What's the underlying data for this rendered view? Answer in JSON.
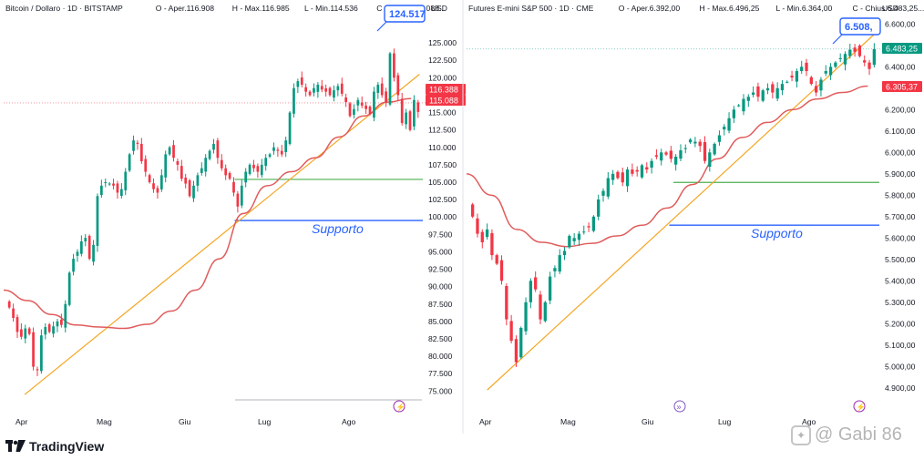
{
  "brand": {
    "name": "TradingView"
  },
  "watermark": {
    "text": "@ Gabi 86"
  },
  "chart_data": [
    {
      "type": "candlestick",
      "header": {
        "symbol": "Bitcoin / Dollaro · 1D · BITSTAMP",
        "open": "O - Aper.116.908",
        "high": "H - Max.116.985",
        "low": "L - Min.114.536",
        "close": "C - Chius.115.088..."
      },
      "currency": "USD",
      "y_ticks": [
        "125.000",
        "122.500",
        "120.000",
        "117.500",
        "115.000",
        "112.500",
        "110.000",
        "107.500",
        "105.000",
        "102.500",
        "100.000",
        "97.500",
        "95.000",
        "92.500",
        "90.000",
        "87.500",
        "85.000",
        "82.500",
        "80.000",
        "77.500",
        "75.000"
      ],
      "y_range": [
        74000,
        127500
      ],
      "x_labels": [
        "Apr",
        "Mag",
        "Giu",
        "Lug",
        "Ago"
      ],
      "price_tags": [
        {
          "value": 124517,
          "label": "124.517",
          "style": "callout",
          "color": "#2962ff"
        },
        {
          "value": 116388,
          "label": "116.388",
          "style": "filled",
          "color": "#f23645"
        },
        {
          "value": 115088,
          "label": "115.088",
          "style": "filled",
          "color": "#f23645"
        }
      ],
      "support_label": "Supporto",
      "support_level": 99500,
      "green_level": 105400,
      "trendline": {
        "from": {
          "t": 0.05,
          "y": 74500
        },
        "to": {
          "t": 0.99,
          "y": 120500
        }
      },
      "ma_values": [
        89500,
        88000,
        86000,
        84500,
        84200,
        84000,
        84600,
        86500,
        89500,
        94000,
        100500,
        104500,
        106500,
        108500,
        111500,
        114500,
        116500,
        117000
      ],
      "closes": [
        87000,
        85500,
        83500,
        82800,
        84000,
        83200,
        78500,
        78000,
        83000,
        84200,
        83500,
        84300,
        85000,
        84500,
        87500,
        92000,
        94000,
        95000,
        96500,
        97000,
        94000,
        96000,
        103000,
        104500,
        105000,
        104800,
        104500,
        103500,
        104000,
        106500,
        109000,
        111000,
        110500,
        108000,
        106500,
        105000,
        104000,
        103500,
        106000,
        109000,
        110000,
        108500,
        107500,
        105500,
        104800,
        103000,
        104500,
        106000,
        107000,
        108500,
        109500,
        110500,
        108500,
        107000,
        106000,
        105500,
        103500,
        101500,
        104500,
        106500,
        107500,
        107000,
        106500,
        107500,
        108500,
        109000,
        110000,
        109500,
        109000,
        111000,
        115000,
        118500,
        119500,
        119000,
        118000,
        117500,
        118500,
        119000,
        118300,
        118000,
        117500,
        118200,
        118800,
        117700,
        116500,
        114500,
        115500,
        116800,
        116000,
        115500,
        114800,
        118000,
        119000,
        117500,
        116500,
        123500,
        120000,
        117500,
        113500,
        115000,
        112500,
        116800,
        115088
      ]
    },
    {
      "type": "candlestick",
      "header": {
        "symbol": "Futures E-mini S&P 500 · 1D · CME",
        "open": "O - Aper.6.392,00",
        "high": "H - Max.6.496,25",
        "low": "L - Min.6.364,00",
        "close": "C - Chius.6.483,25..."
      },
      "currency": "USD",
      "y_ticks": [
        "6.600,00",
        "6.500,00",
        "6.400,00",
        "6.300,00",
        "6.200,00",
        "6.100,00",
        "6.000,00",
        "5.900,00",
        "5.800,00",
        "5.700,00",
        "5.600,00",
        "5.500,00",
        "5.400,00",
        "5.300,00",
        "5.200,00",
        "5.100,00",
        "5.000,00",
        "4.900,00"
      ],
      "y_range": [
        4865,
        6610
      ],
      "x_labels": [
        "Apr",
        "Mag",
        "Giu",
        "Lug",
        "Ago"
      ],
      "price_tags": [
        {
          "value": 6508,
          "label": "6.508,",
          "style": "callout",
          "color": "#2962ff"
        },
        {
          "value": 6483.25,
          "label": "6.483,25",
          "style": "filled",
          "color": "#089981"
        },
        {
          "value": 6305.37,
          "label": "6.305,37",
          "style": "filled",
          "color": "#f23645"
        }
      ],
      "support_label": "Supporto",
      "support_level": 5660,
      "green_level": 5860,
      "trendline": {
        "from": {
          "t": 0.05,
          "y": 4890
        },
        "to": {
          "t": 0.99,
          "y": 6560
        }
      },
      "ma_values": [
        5900,
        5800,
        5640,
        5580,
        5560,
        5575,
        5610,
        5660,
        5740,
        5850,
        5970,
        6070,
        6140,
        6200,
        6250,
        6280,
        6310
      ],
      "closes": [
        5700,
        5620,
        5580,
        5640,
        5520,
        5480,
        5400,
        5220,
        5120,
        5020,
        5180,
        5300,
        5400,
        5360,
        5220,
        5300,
        5420,
        5460,
        5520,
        5540,
        5610,
        5600,
        5620,
        5630,
        5650,
        5700,
        5780,
        5820,
        5880,
        5900,
        5880,
        5860,
        5920,
        5900,
        5910,
        5940,
        5920,
        5960,
        5980,
        6000,
        5990,
        5970,
        5980,
        6010,
        6020,
        6060,
        6050,
        6030,
        5960,
        6000,
        6040,
        6080,
        6120,
        6160,
        6200,
        6220,
        6250,
        6260,
        6280,
        6260,
        6290,
        6300,
        6280,
        6300,
        6320,
        6330,
        6350,
        6380,
        6400,
        6380,
        6320,
        6280,
        6340,
        6380,
        6400,
        6420,
        6440,
        6460,
        6480,
        6470,
        6450,
        6420,
        6390,
        6483
      ]
    }
  ]
}
